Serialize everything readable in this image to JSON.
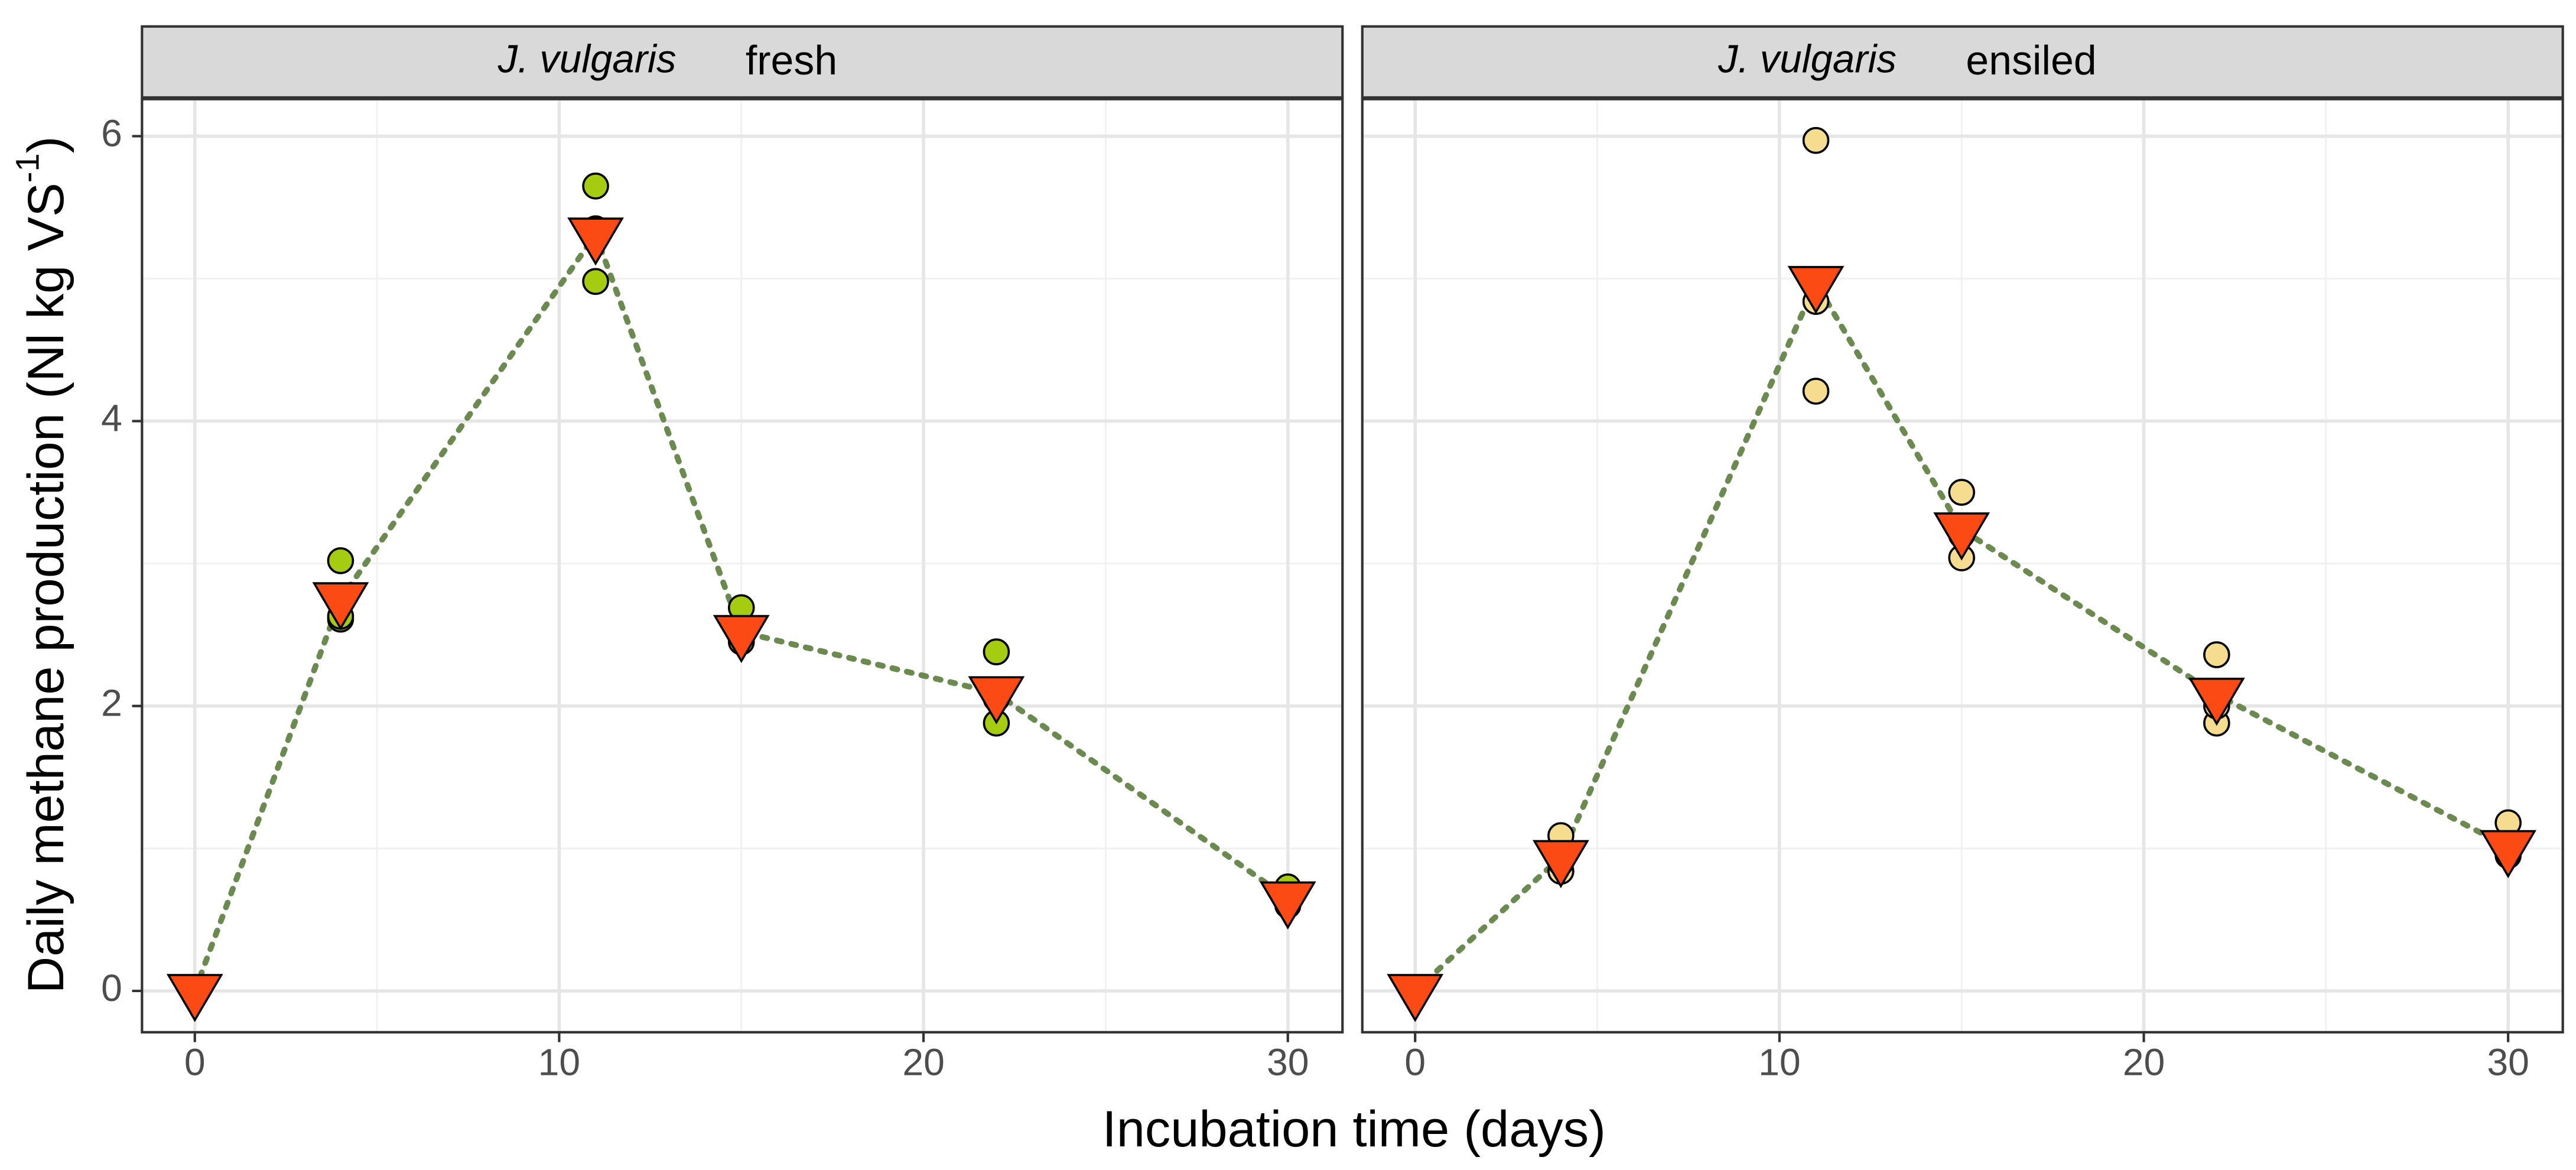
{
  "xlabel": "Incubation time (days)",
  "ylabel": {
    "text": "Daily methane production (Nl kg VS",
    "superscript": "-1",
    "suffix": ")"
  },
  "chart_data": [
    {
      "type": "scatter",
      "strip_species": "J. vulgaris",
      "strip_condition": "fresh",
      "xlim": [
        -1.45,
        31.5
      ],
      "ylim": [
        -0.29,
        6.26
      ],
      "xticks": [
        0,
        10,
        20,
        30
      ],
      "yticks": [
        0,
        2,
        4,
        6
      ],
      "x_minor_grid": [
        5,
        15,
        25
      ],
      "y_minor_grid": [
        1,
        3,
        5
      ],
      "grid": true,
      "series": [
        {
          "marker": "circle",
          "color": "#a6cc12",
          "x": [
            0,
            0,
            0,
            4,
            4,
            4,
            11,
            11,
            11,
            15,
            15,
            15,
            22,
            22,
            22,
            30,
            30,
            30
          ],
          "values": [
            0,
            0,
            0,
            3.02,
            2.61,
            2.63,
            5.65,
            4.98,
            5.35,
            2.69,
            2.45,
            2.5,
            2.38,
            1.88,
            2.05,
            0.73,
            0.6,
            0.65
          ]
        },
        {
          "marker": "triangle-down",
          "color": "#fc4a14",
          "line_color": "#6a8a50",
          "x": [
            0,
            4,
            11,
            15,
            22,
            30
          ],
          "values": [
            0,
            2.75,
            5.31,
            2.52,
            2.09,
            0.65
          ]
        }
      ]
    },
    {
      "type": "scatter",
      "strip_species": "J. vulgaris",
      "strip_condition": "ensiled",
      "xlim": [
        -1.45,
        31.5
      ],
      "ylim": [
        -0.29,
        6.26
      ],
      "xticks": [
        0,
        10,
        20,
        30
      ],
      "yticks": [
        0,
        2,
        4,
        6
      ],
      "x_minor_grid": [
        5,
        15,
        25
      ],
      "y_minor_grid": [
        1,
        3,
        5
      ],
      "grid": true,
      "series": [
        {
          "marker": "circle",
          "color": "#f5dc8e",
          "x": [
            0,
            0,
            0,
            4,
            4,
            4,
            11,
            11,
            11,
            15,
            15,
            15,
            22,
            22,
            22,
            30,
            30,
            30
          ],
          "values": [
            0,
            0,
            0,
            1.09,
            0.84,
            0.9,
            5.97,
            4.84,
            4.21,
            3.5,
            3.04,
            3.2,
            2.36,
            1.88,
            2.0,
            1.18,
            0.95,
            1.0
          ]
        },
        {
          "marker": "triangle-down",
          "color": "#fc4a14",
          "line_color": "#6a8a50",
          "x": [
            0,
            4,
            11,
            15,
            22,
            30
          ],
          "values": [
            0,
            0.94,
            4.97,
            3.24,
            2.08,
            1.01
          ]
        }
      ]
    }
  ]
}
